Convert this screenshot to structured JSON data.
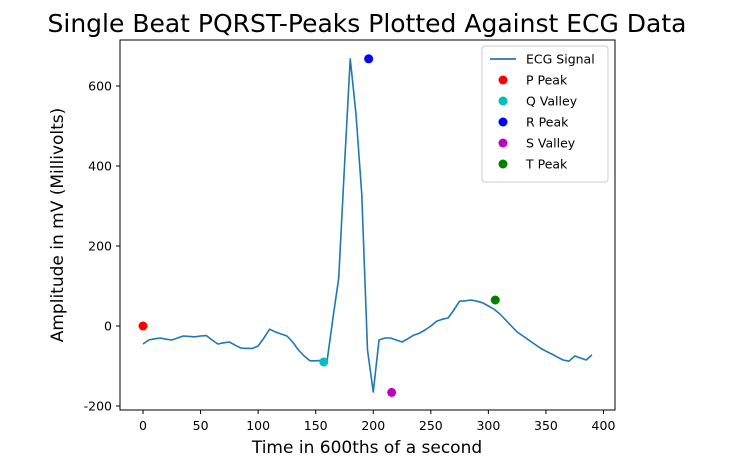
{
  "chart_data": {
    "type": "line",
    "title": "Single Beat PQRST-Peaks Plotted Against ECG Data",
    "xlabel": "Time in 600ths of a second",
    "ylabel": "Amplitude in mV (Millivolts)",
    "xlim": [
      -20,
      410
    ],
    "ylim": [
      -210,
      715
    ],
    "xticks": [
      0,
      50,
      100,
      150,
      200,
      250,
      300,
      350,
      400
    ],
    "yticks": [
      -200,
      0,
      200,
      400,
      600
    ],
    "grid": false,
    "legend_position": "top-right",
    "series": [
      {
        "name": "ECG Signal",
        "kind": "line",
        "color": "#1f77b4",
        "x": [
          0,
          5,
          10,
          15,
          20,
          25,
          30,
          35,
          40,
          45,
          50,
          55,
          60,
          65,
          70,
          75,
          80,
          85,
          90,
          95,
          100,
          105,
          110,
          115,
          120,
          125,
          130,
          135,
          140,
          145,
          150,
          155,
          160,
          165,
          170,
          175,
          180,
          185,
          190,
          195,
          200,
          205,
          210,
          215,
          220,
          225,
          230,
          235,
          240,
          245,
          250,
          255,
          260,
          265,
          270,
          275,
          280,
          285,
          290,
          295,
          300,
          305,
          310,
          315,
          320,
          325,
          330,
          335,
          340,
          345,
          350,
          355,
          360,
          365,
          370,
          375,
          380,
          385,
          390
        ],
        "y": [
          -45,
          -35,
          -32,
          -30,
          -33,
          -35,
          -30,
          -25,
          -26,
          -27,
          -25,
          -24,
          -35,
          -45,
          -42,
          -40,
          -48,
          -55,
          -56,
          -56,
          -50,
          -30,
          -8,
          -15,
          -20,
          -25,
          -40,
          -60,
          -75,
          -87,
          -87,
          -86,
          -85,
          20,
          120,
          400,
          668,
          530,
          330,
          -60,
          -165,
          -35,
          -30,
          -30,
          -35,
          -40,
          -32,
          -23,
          -18,
          -10,
          0,
          12,
          17,
          20,
          40,
          62,
          63,
          65,
          62,
          58,
          50,
          42,
          30,
          15,
          0,
          -15,
          -25,
          -35,
          -45,
          -55,
          -63,
          -70,
          -78,
          -85,
          -88,
          -75,
          -80,
          -85,
          -72
        ],
        "x_override": [
          0,
          5,
          10,
          15,
          20,
          25,
          30,
          35,
          40,
          45,
          50,
          55,
          60,
          65,
          70,
          75,
          80,
          85,
          90,
          95,
          100,
          105,
          110,
          115,
          120,
          125,
          130,
          135,
          140,
          145,
          150,
          155,
          160,
          165,
          170,
          175,
          180,
          185,
          190,
          195,
          200,
          205,
          210,
          215,
          220,
          225,
          230,
          235,
          240,
          245,
          250,
          255,
          260,
          265,
          270,
          275,
          280,
          285,
          290,
          295,
          300,
          305,
          310,
          315,
          320,
          325,
          330,
          335,
          340,
          345,
          350,
          355,
          360,
          365,
          370,
          375,
          380,
          385,
          390
        ]
      },
      {
        "name": "P Peak",
        "kind": "point",
        "color": "#ff0000",
        "x": [
          0
        ],
        "y": [
          0
        ]
      },
      {
        "name": "Q Valley",
        "kind": "point",
        "color": "#00bfbf",
        "x": [
          157
        ],
        "y": [
          -90
        ]
      },
      {
        "name": "R Peak",
        "kind": "point",
        "color": "#0000ff",
        "x": [
          196
        ],
        "y": [
          668
        ]
      },
      {
        "name": "S Valley",
        "kind": "point",
        "color": "#bf00bf",
        "x": [
          216
        ],
        "y": [
          -166
        ]
      },
      {
        "name": "T Peak",
        "kind": "point",
        "color": "#008000",
        "x": [
          306
        ],
        "y": [
          65
        ]
      }
    ]
  }
}
